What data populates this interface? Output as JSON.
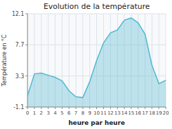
{
  "chart_data": {
    "type": "area",
    "title": "Evolution de la température",
    "x_label": "heure par heure",
    "y_label": "Température en °C",
    "x": [
      0,
      1,
      2,
      3,
      4,
      5,
      6,
      7,
      8,
      9,
      10,
      11,
      12,
      13,
      14,
      15,
      16,
      17,
      18,
      19,
      20
    ],
    "values": [
      0.5,
      3.6,
      3.7,
      3.4,
      3.1,
      2.6,
      1.2,
      0.35,
      0.25,
      2.5,
      5.5,
      8.0,
      9.4,
      9.8,
      11.2,
      11.5,
      10.8,
      9.2,
      4.8,
      2.2,
      2.7
    ],
    "color": "#50b8d0",
    "xlim": [
      0,
      20
    ],
    "xticks": [
      0,
      1,
      2,
      3,
      4,
      5,
      6,
      7,
      8,
      9,
      10,
      11,
      12,
      13,
      14,
      15,
      16,
      17,
      18,
      19,
      20
    ],
    "ylim": [
      -1.1,
      12.1
    ],
    "yticks": [
      -1.1,
      3.3,
      7.7,
      12.1
    ],
    "grid": true
  }
}
